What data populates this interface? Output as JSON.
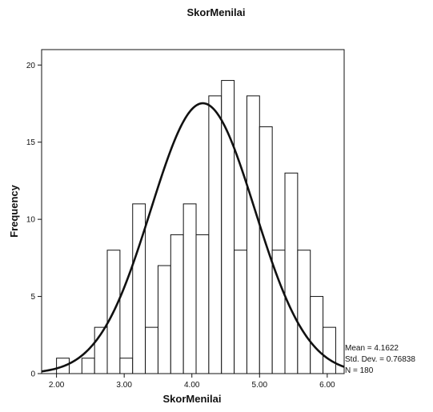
{
  "chart_data": {
    "type": "bar",
    "title": "SkorMenilai",
    "xlabel": "SkorMenilai",
    "ylabel": "Frequency",
    "xlim": [
      1.78,
      6.25
    ],
    "ylim": [
      0,
      21
    ],
    "x_ticks": [
      "2.00",
      "3.00",
      "4.00",
      "5.00",
      "6.00"
    ],
    "x_tick_values": [
      2,
      3,
      4,
      5,
      6
    ],
    "y_ticks": [
      "0",
      "5",
      "10",
      "15",
      "20"
    ],
    "y_tick_values": [
      0,
      5,
      10,
      15,
      20
    ],
    "bin_width": 0.1875,
    "bins": [
      {
        "x": 2.0,
        "value": 1
      },
      {
        "x": 2.1875,
        "value": 0
      },
      {
        "x": 2.375,
        "value": 1
      },
      {
        "x": 2.5625,
        "value": 3
      },
      {
        "x": 2.75,
        "value": 8
      },
      {
        "x": 2.9375,
        "value": 1
      },
      {
        "x": 3.125,
        "value": 11
      },
      {
        "x": 3.3125,
        "value": 3
      },
      {
        "x": 3.5,
        "value": 7
      },
      {
        "x": 3.6875,
        "value": 9
      },
      {
        "x": 3.875,
        "value": 11
      },
      {
        "x": 4.0625,
        "value": 9
      },
      {
        "x": 4.25,
        "value": 18
      },
      {
        "x": 4.4375,
        "value": 19
      },
      {
        "x": 4.625,
        "value": 8
      },
      {
        "x": 4.8125,
        "value": 18
      },
      {
        "x": 5.0,
        "value": 16
      },
      {
        "x": 5.1875,
        "value": 8
      },
      {
        "x": 5.375,
        "value": 13
      },
      {
        "x": 5.5625,
        "value": 8
      },
      {
        "x": 5.75,
        "value": 5
      },
      {
        "x": 5.9375,
        "value": 3
      }
    ],
    "normal_curve": {
      "mean": 4.1622,
      "std": 0.76838,
      "n": 180
    },
    "stats": [
      "Mean = 4.1622",
      "Std. Dev. = 0.76838",
      "N = 180"
    ]
  }
}
